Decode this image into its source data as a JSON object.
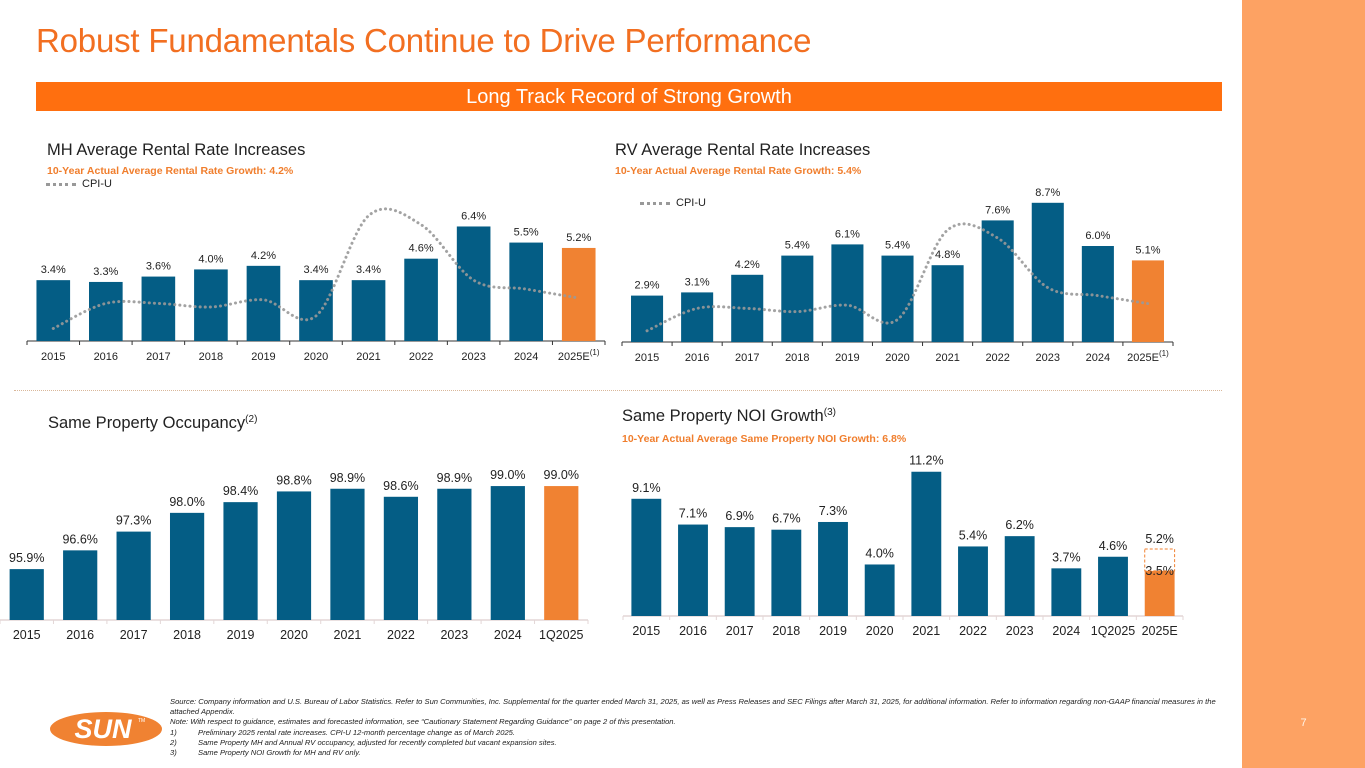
{
  "page": {
    "title": "Robust Fundamentals Continue to Drive Performance",
    "banner": "Long Track Record of Strong Growth",
    "page_number": "7",
    "colors": {
      "title_orange": "#F26F21",
      "banner_orange": "#FF6F0F",
      "sidebar_orange": "#FDA263",
      "bar_blue": "#045D85",
      "bar_orange": "#F08232",
      "subtitle_orange": "#F07E2D",
      "cpi_gray": "#999999"
    }
  },
  "logo": {
    "text": "SUN",
    "icon": "sun-logo"
  },
  "footnotes": {
    "source": "Source: Company information and U.S. Bureau of Labor Statistics. Refer to Sun Communities, Inc. Supplemental for the quarter ended March 31, 2025, as well as Press Releases and SEC Filings after March 31, 2025, for additional information. Refer to information regarding non-GAAP financial measures in the attached Appendix.",
    "note": "Note: With respect to guidance, estimates and forecasted information, see “Cautionary Statement Regarding Guidance” on page 2 of this presentation.",
    "items": [
      {
        "num": "1)",
        "text": "Preliminary 2025 rental rate increases. CPI-U 12-month percentage change as of March 2025."
      },
      {
        "num": "2)",
        "text": "Same Property MH and Annual RV occupancy, adjusted for recently completed but vacant expansion sites."
      },
      {
        "num": "3)",
        "text": "Same Property NOI Growth for MH and RV only."
      }
    ]
  },
  "sections": {
    "mh": {
      "title": "MH Average Rental Rate Increases",
      "subtitle": "10-Year Actual Average Rental Rate Growth: 4.2%",
      "legend": "CPI-U"
    },
    "rv": {
      "title": "RV Average Rental Rate Increases",
      "subtitle": "10-Year Actual Average Rental Rate Growth: 5.4%",
      "legend": "CPI-U"
    },
    "occ": {
      "title": "Same Property Occupancy",
      "title_sup": "(2)"
    },
    "noi": {
      "title": "Same Property NOI Growth",
      "title_sup": "(3)",
      "subtitle": "10-Year Actual Average Same Property NOI Growth: 6.8%"
    }
  },
  "chart_data": [
    {
      "id": "mh",
      "type": "bar",
      "title": "MH Average Rental Rate Increases",
      "subtitle": "10-Year Actual Average Rental Rate Growth: 4.2%",
      "categories": [
        "2015",
        "2016",
        "2017",
        "2018",
        "2019",
        "2020",
        "2021",
        "2022",
        "2023",
        "2024",
        "2025E"
      ],
      "category_sups": [
        "",
        "",
        "",
        "",
        "",
        "",
        "",
        "",
        "",
        "",
        "(1)"
      ],
      "series": [
        {
          "name": "MH Rental Rate Increase",
          "unit": "%",
          "values": [
            3.4,
            3.3,
            3.6,
            4.0,
            4.2,
            3.4,
            3.4,
            4.6,
            6.4,
            5.5,
            5.2
          ],
          "labels": [
            "3.4%",
            "3.3%",
            "3.6%",
            "4.0%",
            "4.2%",
            "3.4%",
            "3.4%",
            "4.6%",
            "6.4%",
            "5.5%",
            "5.2%"
          ],
          "highlight_index": 10
        },
        {
          "name": "CPI-U",
          "type": "line",
          "style": "dotted",
          "values": [
            0.7,
            2.1,
            2.1,
            1.9,
            2.3,
            1.4,
            7.0,
            6.5,
            3.4,
            2.9,
            2.4
          ]
        }
      ],
      "ylim": [
        0,
        7.6
      ],
      "legend": "top-left",
      "grid": false,
      "xlabel": "",
      "ylabel": ""
    },
    {
      "id": "rv",
      "type": "bar",
      "title": "RV Average Rental Rate Increases",
      "subtitle": "10-Year Actual Average Rental Rate Growth: 5.4%",
      "categories": [
        "2015",
        "2016",
        "2017",
        "2018",
        "2019",
        "2020",
        "2021",
        "2022",
        "2023",
        "2024",
        "2025E"
      ],
      "category_sups": [
        "",
        "",
        "",
        "",
        "",
        "",
        "",
        "",
        "",
        "",
        "(1)"
      ],
      "series": [
        {
          "name": "RV Rental Rate Increase",
          "unit": "%",
          "values": [
            2.9,
            3.1,
            4.2,
            5.4,
            6.1,
            5.4,
            4.8,
            7.6,
            8.7,
            6.0,
            5.1
          ],
          "labels": [
            "2.9%",
            "3.1%",
            "4.2%",
            "5.4%",
            "6.1%",
            "5.4%",
            "4.8%",
            "7.6%",
            "8.7%",
            "6.0%",
            "5.1%"
          ],
          "highlight_index": 10
        },
        {
          "name": "CPI-U",
          "type": "line",
          "style": "dotted",
          "values": [
            0.7,
            2.1,
            2.1,
            1.9,
            2.3,
            1.4,
            7.0,
            6.5,
            3.4,
            2.9,
            2.4
          ]
        }
      ],
      "ylim": [
        0,
        9.5
      ],
      "legend": "top-left",
      "grid": false,
      "xlabel": "",
      "ylabel": ""
    },
    {
      "id": "occ",
      "type": "bar",
      "title": "Same Property Occupancy(2)",
      "categories": [
        "2015",
        "2016",
        "2017",
        "2018",
        "2019",
        "2020",
        "2021",
        "2022",
        "2023",
        "2024",
        "1Q2025"
      ],
      "category_sups": [
        "",
        "",
        "",
        "",
        "",
        "",
        "",
        "",
        "",
        "",
        ""
      ],
      "series": [
        {
          "name": "Occupancy",
          "unit": "%",
          "values": [
            95.9,
            96.6,
            97.3,
            98.0,
            98.4,
            98.8,
            98.9,
            98.6,
            98.9,
            99.0,
            99.0
          ],
          "labels": [
            "95.9%",
            "96.6%",
            "97.3%",
            "98.0%",
            "98.4%",
            "98.8%",
            "98.9%",
            "98.6%",
            "98.9%",
            "99.0%",
            "99.0%"
          ],
          "highlight_index": 10
        }
      ],
      "ylim": [
        94.0,
        99.6
      ],
      "grid": false,
      "xlabel": "",
      "ylabel": ""
    },
    {
      "id": "noi",
      "type": "bar",
      "title": "Same Property NOI Growth(3)",
      "subtitle": "10-Year Actual Average Same Property NOI Growth: 6.8%",
      "categories": [
        "2015",
        "2016",
        "2017",
        "2018",
        "2019",
        "2020",
        "2021",
        "2022",
        "2023",
        "2024",
        "1Q2025",
        "2025E"
      ],
      "category_sups": [
        "",
        "",
        "",
        "",
        "",
        "",
        "",
        "",
        "",
        "",
        "",
        ""
      ],
      "series": [
        {
          "name": "NOI Growth",
          "unit": "%",
          "values": [
            9.1,
            7.1,
            6.9,
            6.7,
            7.3,
            4.0,
            11.2,
            5.4,
            6.2,
            3.7,
            4.6,
            3.5
          ],
          "labels": [
            "9.1%",
            "7.1%",
            "6.9%",
            "6.7%",
            "7.3%",
            "4.0%",
            "11.2%",
            "5.4%",
            "6.2%",
            "3.7%",
            "4.6%",
            "3.5%"
          ],
          "highlight_index": 11
        }
      ],
      "range_estimate": {
        "index": 11,
        "low": 3.5,
        "high": 5.2,
        "low_label": "3.5%",
        "high_label": "5.2%"
      },
      "ylim": [
        0,
        12.5
      ],
      "grid": false,
      "xlabel": "",
      "ylabel": ""
    }
  ]
}
